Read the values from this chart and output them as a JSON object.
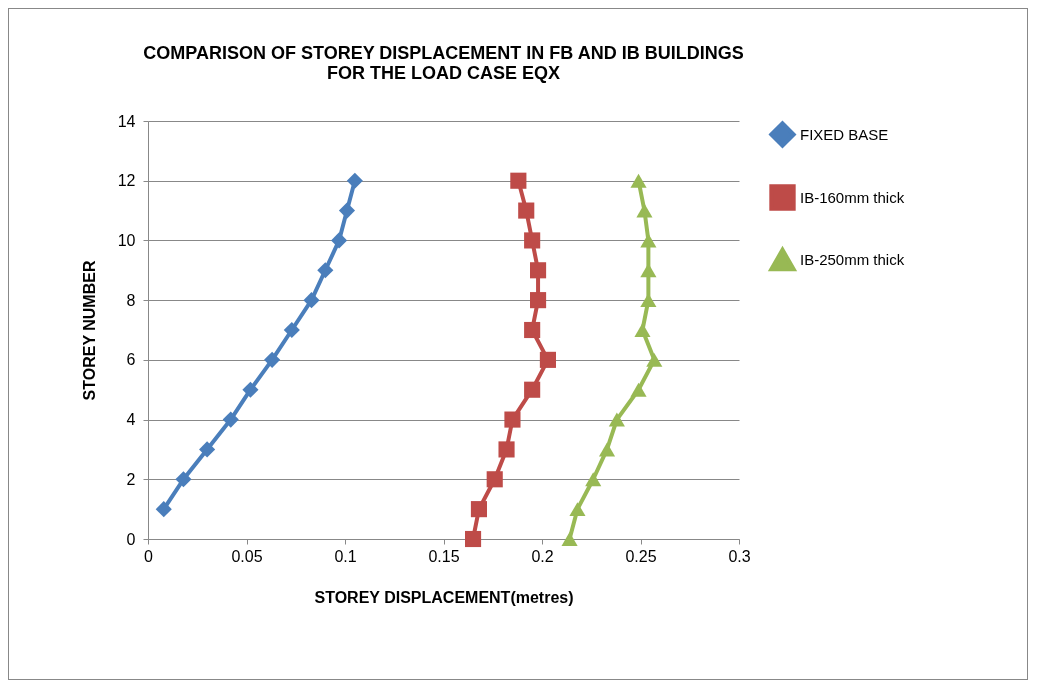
{
  "chart_data": {
    "type": "line",
    "title": "COMPARISON OF STOREY DISPLACEMENT IN FB AND IB BUILDINGS\nFOR THE LOAD CASE EQX",
    "xlabel": "STOREY DISPLACEMENT(metres)",
    "ylabel": "STOREY NUMBER",
    "xlim": [
      0,
      0.3
    ],
    "xticks": [
      0,
      0.05,
      0.1,
      0.15,
      0.2,
      0.25,
      0.3
    ],
    "ylim": [
      0,
      14
    ],
    "yticks": [
      0,
      2,
      4,
      6,
      8,
      10,
      12,
      14
    ],
    "grid": "y",
    "legend": "right",
    "series": [
      {
        "name": "FIXED BASE",
        "color": "#4a7ebb",
        "marker": "diamond",
        "x": [
          0.008,
          0.018,
          0.03,
          0.042,
          0.052,
          0.063,
          0.073,
          0.083,
          0.09,
          0.097,
          0.101,
          0.105
        ],
        "values": [
          1,
          2,
          3,
          4,
          5,
          6,
          7,
          8,
          9,
          10,
          11,
          12
        ]
      },
      {
        "name": "IB-160mm thick",
        "color": "#be4b48",
        "marker": "square",
        "x": [
          0.165,
          0.168,
          0.176,
          0.182,
          0.185,
          0.195,
          0.203,
          0.195,
          0.198,
          0.198,
          0.195,
          0.192,
          0.188
        ],
        "values": [
          0,
          1,
          2,
          3,
          4,
          5,
          6,
          7,
          8,
          9,
          10,
          11,
          12
        ]
      },
      {
        "name": "IB-250mm thick",
        "color": "#98b954",
        "marker": "triangle",
        "x": [
          0.214,
          0.218,
          0.226,
          0.233,
          0.238,
          0.249,
          0.257,
          0.251,
          0.254,
          0.254,
          0.254,
          0.252,
          0.249
        ],
        "values": [
          0,
          1,
          2,
          3,
          4,
          5,
          6,
          7,
          8,
          9,
          10,
          11,
          12
        ]
      }
    ]
  }
}
